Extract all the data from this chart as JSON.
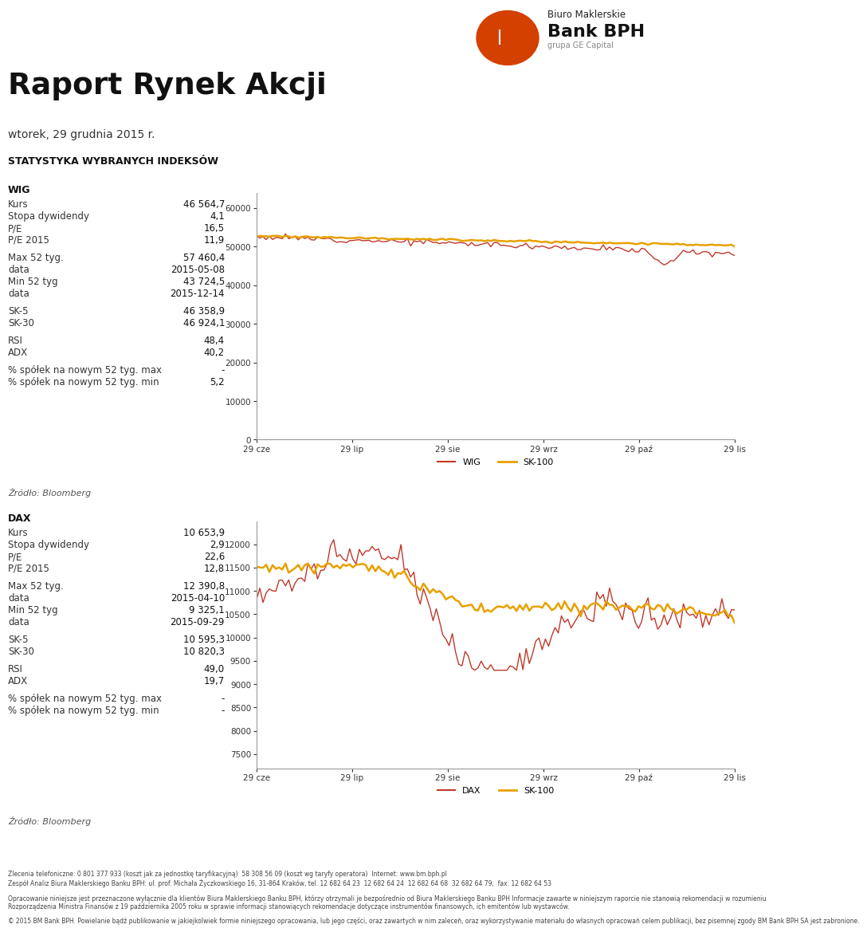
{
  "title": "Raport Rynek Akcji",
  "date": "wtorek, 29 grudnia 2015 r.",
  "section_title": "STATYSTYKA WYBRANYCH INDEKSÓW",
  "source": "Źródło: Bloomberg",
  "wig": {
    "label": "WIG",
    "kurs": "46 564,7",
    "stopa_dywidendy": "4,1",
    "pe": "16,5",
    "pe2015": "11,9",
    "max52": "57 460,4",
    "max52_date": "2015-05-08",
    "min52": "43 724,5",
    "min52_date": "2015-12-14",
    "sk5": "46 358,9",
    "sk30": "46 924,1",
    "rsi": "48,4",
    "adx": "40,2",
    "pct_max": "-",
    "pct_min": "5,2"
  },
  "dax": {
    "label": "DAX",
    "kurs": "10 653,9",
    "stopa_dywidendy": "2,9",
    "pe": "22,6",
    "pe2015": "12,8",
    "max52": "12 390,8",
    "max52_date": "2015-04-10",
    "min52": "9 325,1",
    "min52_date": "2015-09-29",
    "sk5": "10 595,3",
    "sk30": "10 820,3",
    "rsi": "49,0",
    "adx": "19,7",
    "pct_max": "-",
    "pct_min": "-"
  },
  "wig_line_color": "#c0392b",
  "sk100_line_color": "#e8a000",
  "bg_color": "#ffffff",
  "header_line_color": "#c0392b",
  "wig_y_ticks": [
    0,
    10000,
    20000,
    30000,
    40000,
    50000,
    60000
  ],
  "wig_ylim": [
    0,
    64000
  ],
  "dax_y_ticks": [
    7500,
    8000,
    8500,
    9000,
    9500,
    10000,
    10500,
    11000,
    11500,
    12000
  ],
  "dax_ylim": [
    7200,
    12500
  ],
  "x_labels": [
    "29 cze",
    "29 lip",
    "29 sie",
    "29 wrz",
    "29 paź",
    "29 lis"
  ],
  "footer_line1": "Zlecenia telefoniczne: 0 801 377 933 (koszt jak za jednostkę taryfikacyjną)  58 308 56 09 (koszt wg taryfy operatora)  Internet: www.bm.bph.pl",
  "footer_line2": "Zespół Analiz Biura Maklerskiego Banku BPH: ul. prof. Michała Życzkowskiego 16, 31-864 Kraków, tel. 12 682 64 23  12 682 64 24  12 682 64 68  32 682 64 79,  fax: 12 682 64 53",
  "footer_line3": "Opracowanie niniejsze jest przeznaczone wyłącznie dla klientów Biura Maklerskiego Banku BPH, którzy otrzymali je bezpośrednio od Biura Maklerskiego Banku BPH Informacje zawarte w niniejszym raporcie nie stanowią rekomendacji w rozumieniu",
  "footer_line4": "Rozporządzenia Ministra Finansów z 19 października 2005 roku w sprawie informacji stanowiących rekomendacje dotyczące instrumentów finansowych, ich emitentów lub wystawców.",
  "footer_line5": "© 2015 BM Bank BPH. Powielanie bądź publikowanie w jakiejkolwiek formie niniejszego opracowania, lub jego części, oraz zawartych w nim zaleceń, oraz wykorzystywanie materiału do własnych opracowań celem publikacji, bez pisemnej zgody BM Bank BPH SA jest zabronione."
}
